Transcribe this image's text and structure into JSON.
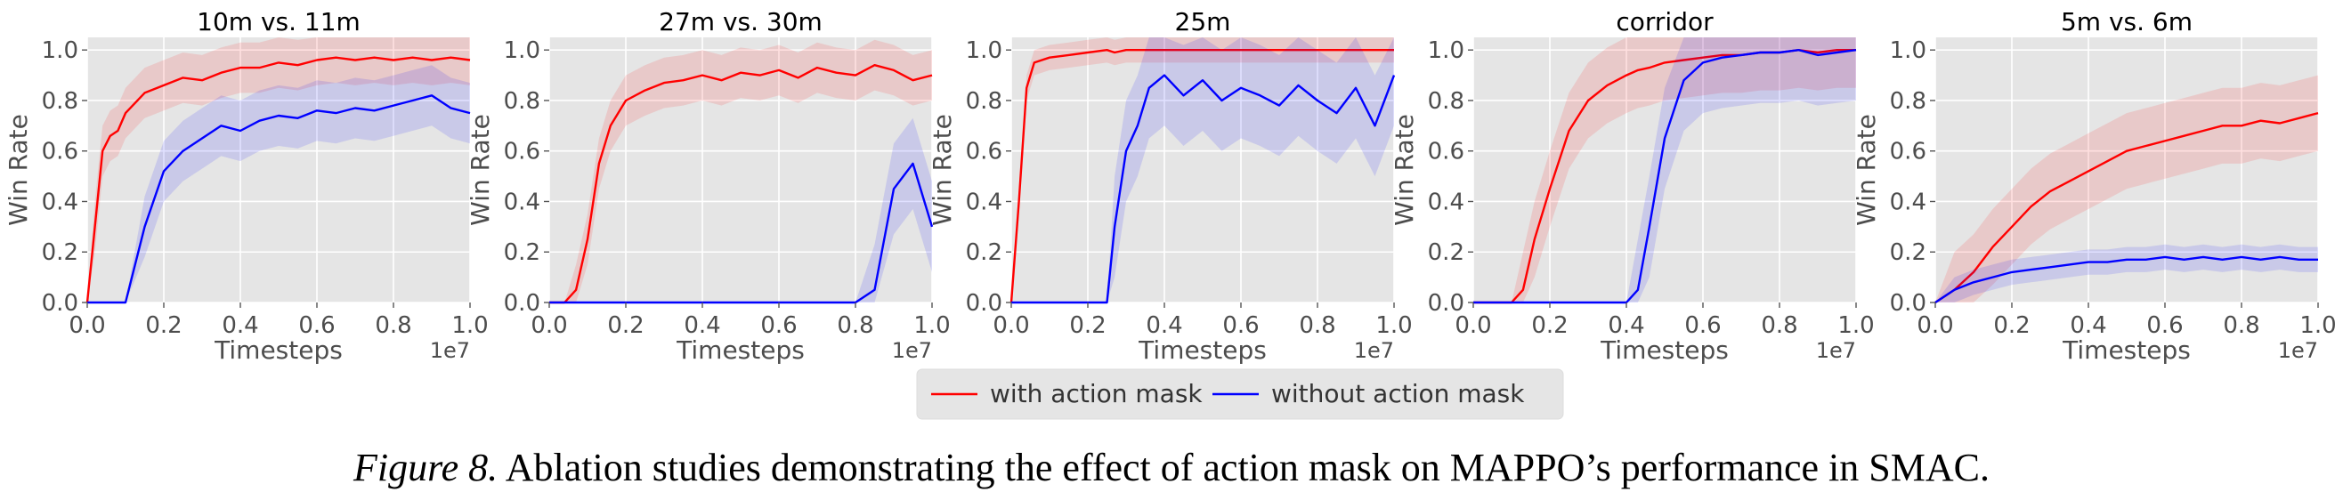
{
  "caption": {
    "label": "Figure 8.",
    "text": "Ablation studies demonstrating the effect of action mask on MAPPO’s performance in SMAC."
  },
  "legend": {
    "entries": [
      {
        "label": "with action mask",
        "color": "#ff0000"
      },
      {
        "label": "without action mask",
        "color": "#0000ff"
      }
    ]
  },
  "chart_data": [
    {
      "type": "line",
      "title": "10m vs. 11m",
      "xlabel": "Timesteps",
      "ylabel": "Win Rate",
      "x_multiplier": "1e7",
      "xlim": [
        0,
        1.0
      ],
      "ylim": [
        0,
        1.05
      ],
      "xticks": [
        "0.0",
        "0.2",
        "0.4",
        "0.6",
        "0.8",
        "1.0"
      ],
      "yticks": [
        "0.0",
        "0.2",
        "0.4",
        "0.6",
        "0.8",
        "1.0"
      ],
      "grid": true,
      "x": [
        0.0,
        0.02,
        0.04,
        0.06,
        0.08,
        0.1,
        0.15,
        0.2,
        0.25,
        0.3,
        0.35,
        0.4,
        0.45,
        0.5,
        0.55,
        0.6,
        0.65,
        0.7,
        0.75,
        0.8,
        0.85,
        0.9,
        0.95,
        1.0
      ],
      "series": [
        {
          "name": "with action mask",
          "color": "#ff0000",
          "values": [
            0.0,
            0.3,
            0.6,
            0.66,
            0.68,
            0.75,
            0.83,
            0.86,
            0.89,
            0.88,
            0.91,
            0.93,
            0.93,
            0.95,
            0.94,
            0.96,
            0.97,
            0.96,
            0.97,
            0.96,
            0.97,
            0.96,
            0.97,
            0.96
          ],
          "band": 0.1
        },
        {
          "name": "without action mask",
          "color": "#0000ff",
          "values": [
            0.0,
            0.0,
            0.0,
            0.0,
            0.0,
            0.0,
            0.3,
            0.52,
            0.6,
            0.65,
            0.7,
            0.68,
            0.72,
            0.74,
            0.73,
            0.76,
            0.75,
            0.77,
            0.76,
            0.78,
            0.8,
            0.82,
            0.77,
            0.75
          ],
          "band": 0.12
        }
      ]
    },
    {
      "type": "line",
      "title": "27m vs. 30m",
      "xlabel": "Timesteps",
      "ylabel": "Win Rate",
      "x_multiplier": "1e7",
      "xlim": [
        0,
        1.0
      ],
      "ylim": [
        0,
        1.05
      ],
      "xticks": [
        "0.0",
        "0.2",
        "0.4",
        "0.6",
        "0.8",
        "1.0"
      ],
      "yticks": [
        "0.0",
        "0.2",
        "0.4",
        "0.6",
        "0.8",
        "1.0"
      ],
      "grid": true,
      "x": [
        0.0,
        0.04,
        0.07,
        0.1,
        0.13,
        0.16,
        0.2,
        0.25,
        0.3,
        0.35,
        0.4,
        0.45,
        0.5,
        0.55,
        0.6,
        0.65,
        0.7,
        0.75,
        0.8,
        0.85,
        0.9,
        0.95,
        1.0
      ],
      "series": [
        {
          "name": "with action mask",
          "color": "#ff0000",
          "values": [
            0.0,
            0.0,
            0.05,
            0.25,
            0.55,
            0.7,
            0.8,
            0.84,
            0.87,
            0.88,
            0.9,
            0.88,
            0.91,
            0.9,
            0.92,
            0.89,
            0.93,
            0.91,
            0.9,
            0.94,
            0.92,
            0.88,
            0.9
          ],
          "band": 0.1
        },
        {
          "name": "without action mask",
          "color": "#0000ff",
          "values": [
            0.0,
            0.0,
            0.0,
            0.0,
            0.0,
            0.0,
            0.0,
            0.0,
            0.0,
            0.0,
            0.0,
            0.0,
            0.0,
            0.0,
            0.0,
            0.0,
            0.0,
            0.0,
            0.0,
            0.05,
            0.45,
            0.55,
            0.3
          ],
          "band": 0.18
        }
      ]
    },
    {
      "type": "line",
      "title": "25m",
      "xlabel": "Timesteps",
      "ylabel": "Win Rate",
      "x_multiplier": "1e7",
      "xlim": [
        0,
        1.0
      ],
      "ylim": [
        0,
        1.05
      ],
      "xticks": [
        "0.0",
        "0.2",
        "0.4",
        "0.6",
        "0.8",
        "1.0"
      ],
      "yticks": [
        "0.0",
        "0.2",
        "0.4",
        "0.6",
        "0.8",
        "1.0"
      ],
      "grid": true,
      "x": [
        0.0,
        0.02,
        0.04,
        0.06,
        0.1,
        0.15,
        0.2,
        0.25,
        0.27,
        0.3,
        0.33,
        0.36,
        0.4,
        0.45,
        0.5,
        0.55,
        0.6,
        0.65,
        0.7,
        0.75,
        0.8,
        0.85,
        0.9,
        0.95,
        1.0
      ],
      "series": [
        {
          "name": "with action mask",
          "color": "#ff0000",
          "values": [
            0.0,
            0.4,
            0.85,
            0.95,
            0.97,
            0.98,
            0.99,
            1.0,
            0.99,
            1.0,
            1.0,
            1.0,
            1.0,
            1.0,
            1.0,
            1.0,
            1.0,
            1.0,
            1.0,
            1.0,
            1.0,
            1.0,
            1.0,
            1.0,
            1.0
          ],
          "band": 0.05
        },
        {
          "name": "without action mask",
          "color": "#0000ff",
          "values": [
            0.0,
            0.0,
            0.0,
            0.0,
            0.0,
            0.0,
            0.0,
            0.0,
            0.3,
            0.6,
            0.7,
            0.85,
            0.9,
            0.82,
            0.88,
            0.8,
            0.85,
            0.82,
            0.78,
            0.86,
            0.8,
            0.75,
            0.85,
            0.7,
            0.9
          ],
          "band": 0.2
        }
      ]
    },
    {
      "type": "line",
      "title": "corridor",
      "xlabel": "Timesteps",
      "ylabel": "Win Rate",
      "x_multiplier": "1e7",
      "xlim": [
        0,
        1.0
      ],
      "ylim": [
        0,
        1.05
      ],
      "xticks": [
        "0.0",
        "0.2",
        "0.4",
        "0.6",
        "0.8",
        "1.0"
      ],
      "yticks": [
        "0.0",
        "0.2",
        "0.4",
        "0.6",
        "0.8",
        "1.0"
      ],
      "grid": true,
      "x": [
        0.0,
        0.05,
        0.1,
        0.13,
        0.16,
        0.2,
        0.25,
        0.3,
        0.35,
        0.4,
        0.43,
        0.46,
        0.5,
        0.55,
        0.6,
        0.65,
        0.7,
        0.75,
        0.8,
        0.85,
        0.9,
        0.95,
        1.0
      ],
      "series": [
        {
          "name": "with action mask",
          "color": "#ff0000",
          "values": [
            0.0,
            0.0,
            0.0,
            0.05,
            0.25,
            0.45,
            0.68,
            0.8,
            0.86,
            0.9,
            0.92,
            0.93,
            0.95,
            0.96,
            0.97,
            0.98,
            0.98,
            0.99,
            0.99,
            1.0,
            0.99,
            1.0,
            1.0
          ],
          "band": 0.15
        },
        {
          "name": "without action mask",
          "color": "#0000ff",
          "values": [
            0.0,
            0.0,
            0.0,
            0.0,
            0.0,
            0.0,
            0.0,
            0.0,
            0.0,
            0.0,
            0.05,
            0.3,
            0.65,
            0.88,
            0.95,
            0.97,
            0.98,
            0.99,
            0.99,
            1.0,
            0.98,
            0.99,
            1.0
          ],
          "band": 0.2
        }
      ]
    },
    {
      "type": "line",
      "title": "5m vs. 6m",
      "xlabel": "Timesteps",
      "ylabel": "Win Rate",
      "x_multiplier": "1e7",
      "xlim": [
        0,
        1.0
      ],
      "ylim": [
        0,
        1.05
      ],
      "xticks": [
        "0.0",
        "0.2",
        "0.4",
        "0.6",
        "0.8",
        "1.0"
      ],
      "yticks": [
        "0.0",
        "0.2",
        "0.4",
        "0.6",
        "0.8",
        "1.0"
      ],
      "grid": true,
      "x": [
        0.0,
        0.05,
        0.1,
        0.15,
        0.2,
        0.25,
        0.3,
        0.35,
        0.4,
        0.45,
        0.5,
        0.55,
        0.6,
        0.65,
        0.7,
        0.75,
        0.8,
        0.85,
        0.9,
        0.95,
        1.0
      ],
      "series": [
        {
          "name": "with action mask",
          "color": "#ff0000",
          "values": [
            0.0,
            0.05,
            0.12,
            0.22,
            0.3,
            0.38,
            0.44,
            0.48,
            0.52,
            0.56,
            0.6,
            0.62,
            0.64,
            0.66,
            0.68,
            0.7,
            0.7,
            0.72,
            0.71,
            0.73,
            0.75
          ],
          "band": 0.15
        },
        {
          "name": "without action mask",
          "color": "#0000ff",
          "values": [
            0.0,
            0.05,
            0.08,
            0.1,
            0.12,
            0.13,
            0.14,
            0.15,
            0.16,
            0.16,
            0.17,
            0.17,
            0.18,
            0.17,
            0.18,
            0.17,
            0.18,
            0.17,
            0.18,
            0.17,
            0.17
          ],
          "band": 0.05
        }
      ]
    }
  ]
}
